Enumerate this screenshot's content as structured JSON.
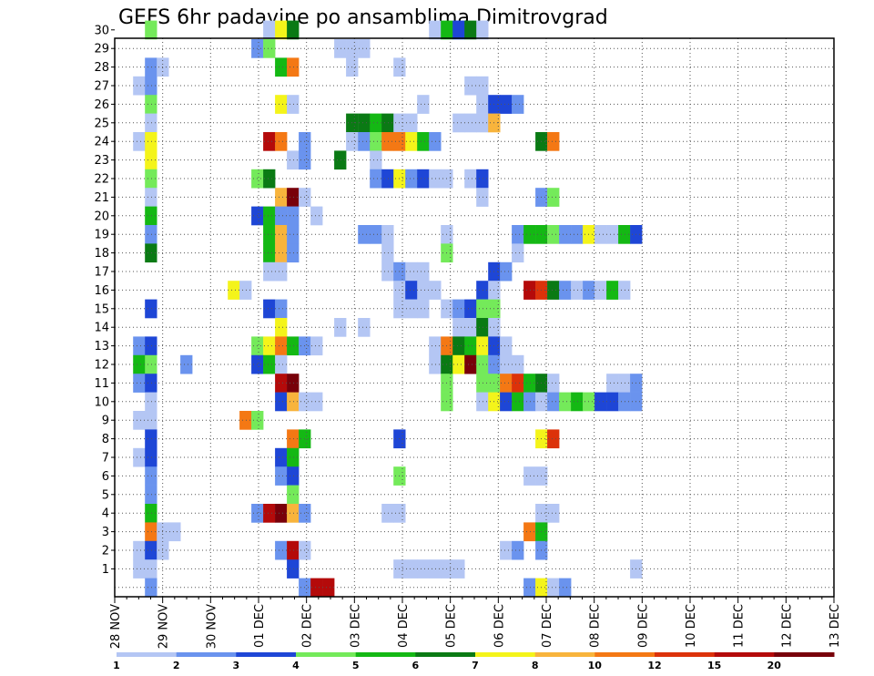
{
  "chart_data": {
    "type": "heatmap",
    "title": "GEFS 6hr padavine po ansamblima Dimitrovgrad",
    "x_tick_labels": [
      "28 NOV",
      "29 NOV",
      "30 NOV",
      "01 DEC",
      "02 DEC",
      "03 DEC",
      "04 DEC",
      "05 DEC",
      "06 DEC",
      "07 DEC",
      "08 DEC",
      "09 DEC",
      "10 DEC",
      "11 DEC",
      "12 DEC",
      "13 DEC"
    ],
    "y_tick_labels": [
      "1",
      "2",
      "3",
      "4",
      "5",
      "6",
      "7",
      "8",
      "9",
      "10",
      "11",
      "12",
      "13",
      "14",
      "15",
      "16",
      "17",
      "18",
      "19",
      "20",
      "21",
      "22",
      "23",
      "24",
      "25",
      "26",
      "27",
      "28",
      "29",
      "30"
    ],
    "grid": true,
    "colorbar": {
      "position": "bottom",
      "labels": [
        "1",
        "2",
        "3",
        "4",
        "5",
        "6",
        "7",
        "8",
        "10",
        "12",
        "15",
        "20"
      ],
      "colors": [
        "#b4c6f4",
        "#6a93ee",
        "#1e46d6",
        "#74ea5a",
        "#14b814",
        "#0a7a14",
        "#f4f41a",
        "#f8b43c",
        "#f47814",
        "#dc320a",
        "#b40a0a",
        "#78000a"
      ]
    },
    "cells": [
      [
        30,
        2,
        4
      ],
      [
        30,
        12,
        1
      ],
      [
        30,
        13,
        7
      ],
      [
        30,
        14,
        6
      ],
      [
        30,
        26,
        1
      ],
      [
        30,
        27,
        5
      ],
      [
        30,
        28,
        3
      ],
      [
        30,
        29,
        6
      ],
      [
        30,
        30,
        1
      ],
      [
        29,
        11,
        2
      ],
      [
        29,
        12,
        4
      ],
      [
        29,
        18,
        1
      ],
      [
        29,
        19,
        1
      ],
      [
        29,
        20,
        1
      ],
      [
        28,
        2,
        2
      ],
      [
        28,
        3,
        1
      ],
      [
        28,
        13,
        5
      ],
      [
        28,
        14,
        9
      ],
      [
        28,
        19,
        1
      ],
      [
        28,
        23,
        1
      ],
      [
        27,
        1,
        1
      ],
      [
        27,
        2,
        2
      ],
      [
        27,
        29,
        1
      ],
      [
        27,
        30,
        1
      ],
      [
        26,
        2,
        4
      ],
      [
        26,
        13,
        7
      ],
      [
        26,
        14,
        1
      ],
      [
        26,
        25,
        1
      ],
      [
        26,
        30,
        1
      ],
      [
        26,
        31,
        3
      ],
      [
        26,
        32,
        3
      ],
      [
        26,
        33,
        2
      ],
      [
        25,
        2,
        1
      ],
      [
        25,
        19,
        6
      ],
      [
        25,
        20,
        6
      ],
      [
        25,
        21,
        5
      ],
      [
        25,
        22,
        6
      ],
      [
        25,
        23,
        1
      ],
      [
        25,
        24,
        1
      ],
      [
        25,
        28,
        1
      ],
      [
        25,
        29,
        1
      ],
      [
        25,
        30,
        1
      ],
      [
        25,
        31,
        8
      ],
      [
        24,
        1,
        1
      ],
      [
        24,
        2,
        7
      ],
      [
        24,
        12,
        11
      ],
      [
        24,
        13,
        9
      ],
      [
        24,
        15,
        2
      ],
      [
        24,
        19,
        1
      ],
      [
        24,
        20,
        2
      ],
      [
        24,
        21,
        4
      ],
      [
        24,
        22,
        9
      ],
      [
        24,
        23,
        9
      ],
      [
        24,
        24,
        7
      ],
      [
        24,
        25,
        5
      ],
      [
        24,
        26,
        2
      ],
      [
        24,
        35,
        6
      ],
      [
        24,
        36,
        9
      ],
      [
        23,
        2,
        7
      ],
      [
        23,
        14,
        1
      ],
      [
        23,
        15,
        2
      ],
      [
        23,
        18,
        6
      ],
      [
        23,
        21,
        1
      ],
      [
        22,
        2,
        4
      ],
      [
        22,
        11,
        4
      ],
      [
        22,
        12,
        6
      ],
      [
        22,
        21,
        2
      ],
      [
        22,
        22,
        3
      ],
      [
        22,
        23,
        7
      ],
      [
        22,
        24,
        2
      ],
      [
        22,
        25,
        3
      ],
      [
        22,
        26,
        1
      ],
      [
        22,
        27,
        1
      ],
      [
        22,
        29,
        1
      ],
      [
        22,
        30,
        3
      ],
      [
        21,
        2,
        1
      ],
      [
        21,
        13,
        8
      ],
      [
        21,
        14,
        12
      ],
      [
        21,
        15,
        1
      ],
      [
        21,
        30,
        1
      ],
      [
        21,
        35,
        2
      ],
      [
        21,
        36,
        4
      ],
      [
        20,
        2,
        5
      ],
      [
        20,
        11,
        3
      ],
      [
        20,
        12,
        5
      ],
      [
        20,
        13,
        2
      ],
      [
        20,
        14,
        2
      ],
      [
        20,
        16,
        1
      ],
      [
        19,
        2,
        2
      ],
      [
        19,
        12,
        5
      ],
      [
        19,
        13,
        8
      ],
      [
        19,
        14,
        2
      ],
      [
        19,
        20,
        2
      ],
      [
        19,
        21,
        2
      ],
      [
        19,
        22,
        1
      ],
      [
        19,
        27,
        1
      ],
      [
        19,
        33,
        2
      ],
      [
        19,
        34,
        5
      ],
      [
        19,
        35,
        5
      ],
      [
        19,
        36,
        4
      ],
      [
        19,
        37,
        2
      ],
      [
        19,
        38,
        2
      ],
      [
        19,
        39,
        7
      ],
      [
        19,
        40,
        1
      ],
      [
        19,
        41,
        1
      ],
      [
        19,
        42,
        5
      ],
      [
        19,
        43,
        3
      ],
      [
        18,
        2,
        6
      ],
      [
        18,
        12,
        5
      ],
      [
        18,
        13,
        8
      ],
      [
        18,
        14,
        2
      ],
      [
        18,
        22,
        1
      ],
      [
        18,
        27,
        4
      ],
      [
        18,
        33,
        1
      ],
      [
        17,
        12,
        1
      ],
      [
        17,
        13,
        1
      ],
      [
        17,
        22,
        1
      ],
      [
        17,
        23,
        2
      ],
      [
        17,
        24,
        1
      ],
      [
        17,
        25,
        1
      ],
      [
        17,
        31,
        3
      ],
      [
        17,
        32,
        2
      ],
      [
        16,
        9,
        7
      ],
      [
        16,
        10,
        1
      ],
      [
        16,
        23,
        1
      ],
      [
        16,
        24,
        3
      ],
      [
        16,
        25,
        1
      ],
      [
        16,
        26,
        1
      ],
      [
        16,
        30,
        3
      ],
      [
        16,
        31,
        1
      ],
      [
        16,
        34,
        11
      ],
      [
        16,
        35,
        10
      ],
      [
        16,
        36,
        6
      ],
      [
        16,
        37,
        2
      ],
      [
        16,
        38,
        1
      ],
      [
        16,
        39,
        2
      ],
      [
        16,
        40,
        1
      ],
      [
        16,
        41,
        5
      ],
      [
        16,
        42,
        1
      ],
      [
        15,
        2,
        3
      ],
      [
        15,
        12,
        3
      ],
      [
        15,
        13,
        2
      ],
      [
        15,
        23,
        1
      ],
      [
        15,
        24,
        1
      ],
      [
        15,
        25,
        1
      ],
      [
        15,
        27,
        1
      ],
      [
        15,
        28,
        2
      ],
      [
        15,
        29,
        3
      ],
      [
        15,
        30,
        4
      ],
      [
        15,
        31,
        4
      ],
      [
        14,
        13,
        7
      ],
      [
        14,
        18,
        1
      ],
      [
        14,
        20,
        1
      ],
      [
        14,
        28,
        1
      ],
      [
        14,
        29,
        1
      ],
      [
        14,
        30,
        6
      ],
      [
        14,
        31,
        1
      ],
      [
        13,
        1,
        2
      ],
      [
        13,
        2,
        3
      ],
      [
        13,
        11,
        4
      ],
      [
        13,
        12,
        7
      ],
      [
        13,
        13,
        9
      ],
      [
        13,
        14,
        5
      ],
      [
        13,
        15,
        2
      ],
      [
        13,
        16,
        1
      ],
      [
        13,
        26,
        1
      ],
      [
        13,
        27,
        9
      ],
      [
        13,
        28,
        6
      ],
      [
        13,
        29,
        5
      ],
      [
        13,
        30,
        7
      ],
      [
        13,
        31,
        3
      ],
      [
        13,
        32,
        1
      ],
      [
        12,
        1,
        5
      ],
      [
        12,
        2,
        4
      ],
      [
        12,
        5,
        2
      ],
      [
        12,
        11,
        3
      ],
      [
        12,
        12,
        5
      ],
      [
        12,
        13,
        1
      ],
      [
        12,
        26,
        1
      ],
      [
        12,
        27,
        6
      ],
      [
        12,
        28,
        7
      ],
      [
        12,
        29,
        12
      ],
      [
        12,
        30,
        4
      ],
      [
        12,
        31,
        2
      ],
      [
        12,
        32,
        1
      ],
      [
        12,
        33,
        1
      ],
      [
        11,
        1,
        2
      ],
      [
        11,
        2,
        3
      ],
      [
        11,
        13,
        11
      ],
      [
        11,
        14,
        12
      ],
      [
        11,
        27,
        4
      ],
      [
        11,
        30,
        4
      ],
      [
        11,
        31,
        4
      ],
      [
        11,
        32,
        9
      ],
      [
        11,
        33,
        10
      ],
      [
        11,
        34,
        5
      ],
      [
        11,
        35,
        6
      ],
      [
        11,
        36,
        1
      ],
      [
        11,
        41,
        1
      ],
      [
        11,
        42,
        1
      ],
      [
        11,
        43,
        2
      ],
      [
        10,
        2,
        1
      ],
      [
        10,
        13,
        3
      ],
      [
        10,
        14,
        8
      ],
      [
        10,
        15,
        1
      ],
      [
        10,
        16,
        1
      ],
      [
        10,
        27,
        4
      ],
      [
        10,
        30,
        1
      ],
      [
        10,
        31,
        7
      ],
      [
        10,
        32,
        3
      ],
      [
        10,
        33,
        5
      ],
      [
        10,
        34,
        2
      ],
      [
        10,
        35,
        1
      ],
      [
        10,
        36,
        2
      ],
      [
        10,
        37,
        4
      ],
      [
        10,
        38,
        5
      ],
      [
        10,
        39,
        4
      ],
      [
        10,
        40,
        3
      ],
      [
        10,
        41,
        3
      ],
      [
        10,
        42,
        2
      ],
      [
        10,
        43,
        2
      ],
      [
        9,
        1,
        1
      ],
      [
        9,
        2,
        1
      ],
      [
        9,
        10,
        9
      ],
      [
        9,
        11,
        4
      ],
      [
        8,
        2,
        3
      ],
      [
        8,
        14,
        9
      ],
      [
        8,
        15,
        5
      ],
      [
        8,
        23,
        3
      ],
      [
        8,
        35,
        7
      ],
      [
        8,
        36,
        10
      ],
      [
        7,
        1,
        1
      ],
      [
        7,
        2,
        3
      ],
      [
        7,
        13,
        3
      ],
      [
        7,
        14,
        5
      ],
      [
        6,
        2,
        2
      ],
      [
        6,
        13,
        2
      ],
      [
        6,
        14,
        3
      ],
      [
        6,
        23,
        4
      ],
      [
        6,
        34,
        1
      ],
      [
        6,
        35,
        1
      ],
      [
        5,
        2,
        2
      ],
      [
        5,
        14,
        4
      ],
      [
        4,
        2,
        5
      ],
      [
        4,
        11,
        2
      ],
      [
        4,
        12,
        11
      ],
      [
        4,
        13,
        12
      ],
      [
        4,
        14,
        8
      ],
      [
        4,
        15,
        2
      ],
      [
        4,
        22,
        1
      ],
      [
        4,
        23,
        1
      ],
      [
        4,
        35,
        1
      ],
      [
        4,
        36,
        1
      ],
      [
        3,
        2,
        9
      ],
      [
        3,
        3,
        1
      ],
      [
        3,
        4,
        1
      ],
      [
        3,
        34,
        9
      ],
      [
        3,
        35,
        5
      ],
      [
        2,
        1,
        1
      ],
      [
        2,
        2,
        3
      ],
      [
        2,
        3,
        1
      ],
      [
        2,
        13,
        2
      ],
      [
        2,
        14,
        11
      ],
      [
        2,
        15,
        1
      ],
      [
        2,
        32,
        1
      ],
      [
        2,
        33,
        2
      ],
      [
        2,
        35,
        2
      ],
      [
        1,
        1,
        1
      ],
      [
        1,
        2,
        1
      ],
      [
        1,
        14,
        3
      ],
      [
        1,
        23,
        1
      ],
      [
        1,
        24,
        1
      ],
      [
        1,
        25,
        1
      ],
      [
        1,
        26,
        1
      ],
      [
        1,
        27,
        1
      ],
      [
        1,
        28,
        1
      ],
      [
        1,
        43,
        1
      ],
      [
        0,
        2,
        2
      ],
      [
        0,
        15,
        2
      ],
      [
        0,
        16,
        11
      ],
      [
        0,
        17,
        11
      ],
      [
        0,
        34,
        2
      ],
      [
        0,
        35,
        7
      ],
      [
        0,
        36,
        1
      ],
      [
        0,
        37,
        2
      ]
    ]
  }
}
